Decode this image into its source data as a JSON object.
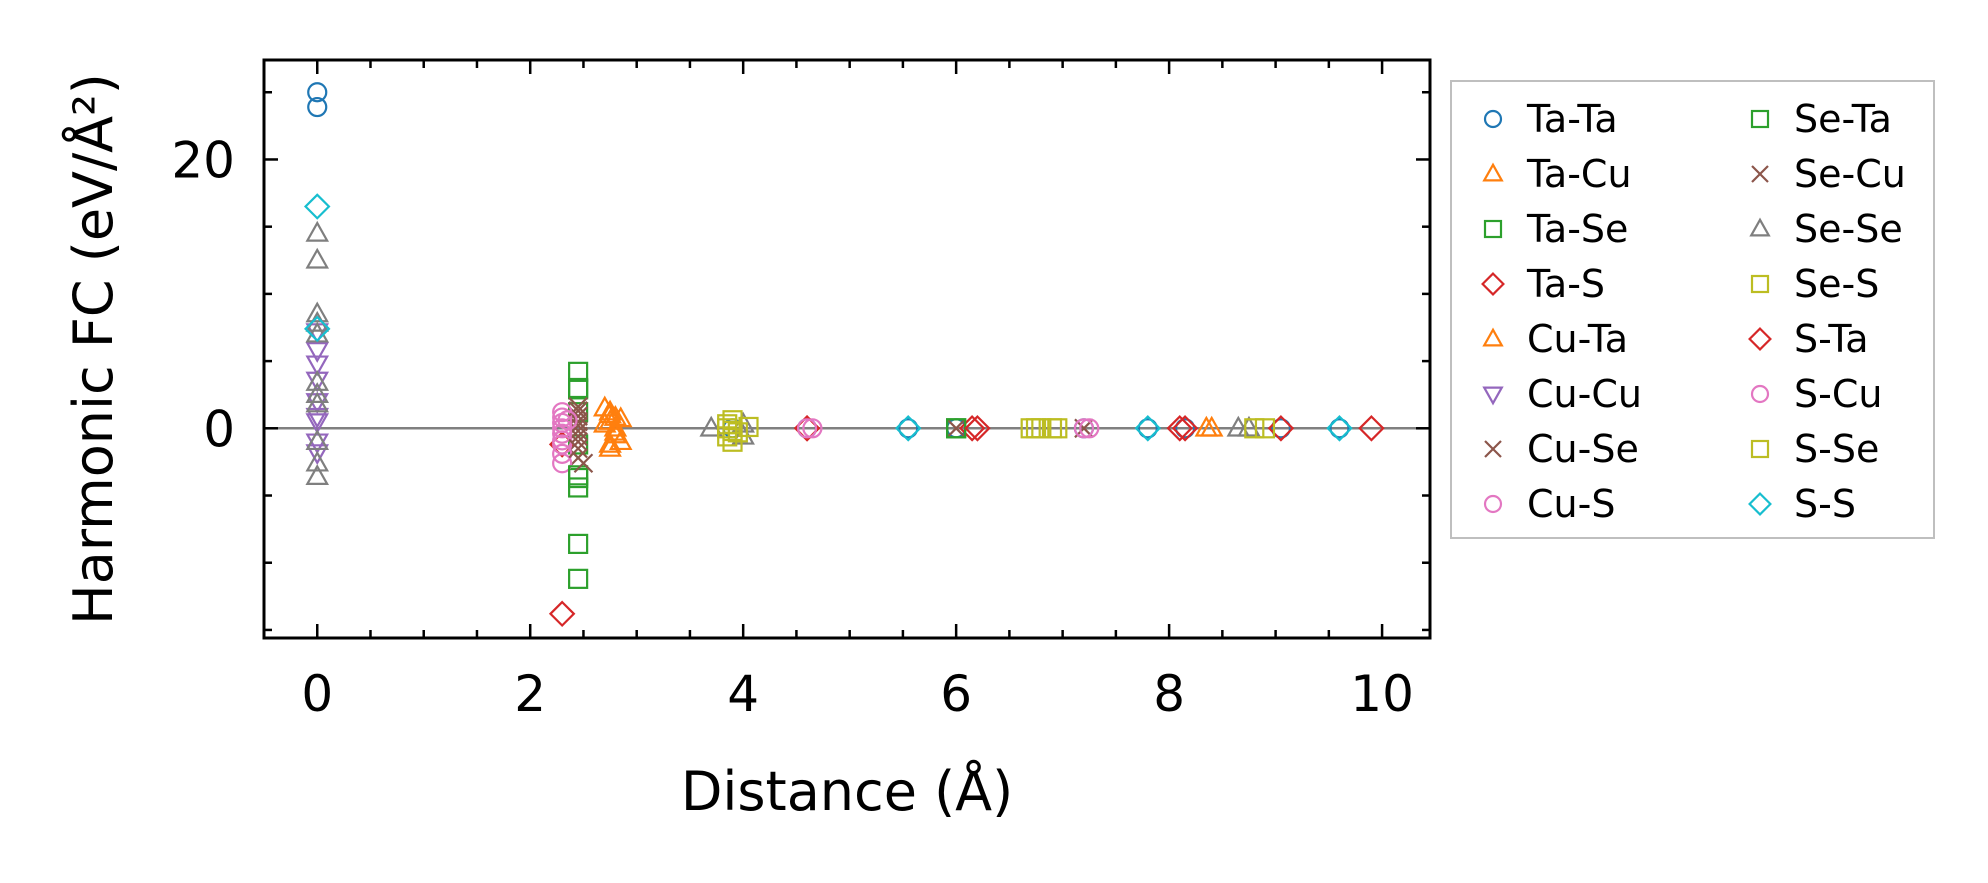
{
  "chart_data": {
    "type": "scatter",
    "title": "",
    "xlabel": "Distance (Å)",
    "ylabel": "Harmonic FC (eV/Å²)",
    "xlim": [
      -0.5,
      10.45
    ],
    "ylim": [
      -15.6,
      27.4
    ],
    "xticks": [
      0,
      2,
      4,
      6,
      8,
      10
    ],
    "yticks": [
      0,
      20
    ],
    "legend_position": "outside-right",
    "series": [
      {
        "name": "Ta-Ta",
        "color": "#1f77b4",
        "marker": "circle",
        "x": [
          0,
          0,
          3.9,
          4.6,
          5.55,
          6.0,
          7.2,
          7.8,
          8.15,
          9.05,
          9.6
        ],
        "y": [
          25.0,
          23.9,
          0,
          0,
          0,
          0,
          0,
          0,
          0,
          0,
          0
        ]
      },
      {
        "name": "Ta-Cu",
        "color": "#ff7f0e",
        "marker": "triangle-up",
        "x": [
          2.7,
          2.75,
          2.75,
          2.8,
          2.8,
          2.85,
          2.75,
          2.8,
          8.35
        ],
        "y": [
          1.5,
          1.0,
          0.5,
          0.0,
          -0.5,
          -1.0,
          -1.5,
          0.8,
          0
        ]
      },
      {
        "name": "Ta-Se",
        "color": "#2ca02c",
        "marker": "square",
        "x": [
          2.45,
          2.45,
          2.45,
          2.45,
          2.45,
          2.45,
          2.45,
          2.45,
          6.0
        ],
        "y": [
          4.2,
          2.9,
          1.2,
          -1.2,
          -3.7,
          -4.4,
          -8.6,
          -11.2,
          0
        ]
      },
      {
        "name": "Ta-S",
        "color": "#d62728",
        "marker": "diamond",
        "x": [
          2.3,
          2.3,
          4.6,
          6.15,
          8.1,
          9.05
        ],
        "y": [
          -13.8,
          -1.2,
          0,
          0,
          0,
          0
        ]
      },
      {
        "name": "Cu-Ta",
        "color": "#ff7f0e",
        "marker": "triangle-up",
        "x": [
          2.7,
          2.75,
          2.8,
          2.85,
          2.75,
          8.4
        ],
        "y": [
          0.3,
          1.2,
          -0.3,
          0.7,
          -1.2,
          0
        ]
      },
      {
        "name": "Cu-Cu",
        "color": "#9467bd",
        "marker": "triangle-down",
        "x": [
          0,
          0,
          0,
          0,
          0,
          0,
          0,
          0,
          0
        ],
        "y": [
          7.2,
          5.8,
          4.8,
          3.6,
          2.0,
          0.9,
          0.5,
          -1.0,
          -1.8
        ]
      },
      {
        "name": "Cu-Se",
        "color": "#8c564b",
        "marker": "x",
        "x": [
          2.45,
          2.45,
          2.45,
          2.45,
          2.45,
          2.45,
          2.45,
          2.45,
          6.0,
          7.2
        ],
        "y": [
          1.3,
          0.9,
          0.5,
          0.2,
          -0.2,
          -0.6,
          -1.0,
          -2.2,
          0,
          0
        ]
      },
      {
        "name": "Cu-S",
        "color": "#e377c2",
        "marker": "circle",
        "x": [
          2.3,
          2.3,
          2.3,
          2.3,
          2.3,
          2.3,
          2.3,
          2.3,
          2.3,
          4.65,
          7.25
        ],
        "y": [
          1.2,
          0.8,
          0.4,
          0.0,
          -0.4,
          -0.9,
          -1.2,
          -1.9,
          -2.6,
          0,
          0
        ]
      },
      {
        "name": "Se-Ta",
        "color": "#2ca02c",
        "marker": "square",
        "x": [
          2.45,
          2.45,
          6.0
        ],
        "y": [
          -3.5,
          3.0,
          0
        ]
      },
      {
        "name": "Se-Cu",
        "color": "#8c564b",
        "marker": "x",
        "x": [
          2.45,
          2.5,
          2.45
        ],
        "y": [
          1.6,
          -2.6,
          -1.5
        ]
      },
      {
        "name": "Se-Se",
        "color": "#7f7f7f",
        "marker": "triangle-up",
        "x": [
          0,
          0,
          0,
          0,
          0,
          0,
          0,
          0,
          0,
          0,
          0,
          3.7,
          4.0,
          4.0,
          8.65,
          8.75
        ],
        "y": [
          14.5,
          12.5,
          8.5,
          7.8,
          7.0,
          3.4,
          2.5,
          1.8,
          -1.0,
          -2.6,
          -3.6,
          0,
          0.3,
          -0.6,
          0,
          0
        ]
      },
      {
        "name": "Se-S",
        "color": "#bcbd22",
        "marker": "square",
        "x": [
          3.85,
          3.9,
          3.95,
          3.85,
          3.9,
          4.05,
          6.7,
          6.8,
          6.9
        ],
        "y": [
          0.3,
          0.6,
          -0.3,
          -0.6,
          -1.0,
          0.1,
          0,
          0,
          0
        ]
      },
      {
        "name": "S-Ta",
        "color": "#d62728",
        "marker": "diamond",
        "x": [
          4.6,
          6.2,
          8.15,
          9.9
        ],
        "y": [
          0,
          0,
          0,
          0
        ]
      },
      {
        "name": "S-Cu",
        "color": "#e377c2",
        "marker": "circle",
        "x": [
          2.35,
          4.6,
          7.2
        ],
        "y": [
          0.6,
          0,
          0
        ]
      },
      {
        "name": "S-Se",
        "color": "#bcbd22",
        "marker": "square",
        "x": [
          3.85,
          3.9,
          6.75,
          6.95,
          8.8,
          8.9
        ],
        "y": [
          0.0,
          -0.2,
          0,
          0,
          0,
          0
        ]
      },
      {
        "name": "S-S",
        "color": "#17becf",
        "marker": "diamond",
        "x": [
          0,
          0,
          5.55,
          7.8,
          9.6
        ],
        "y": [
          16.5,
          7.4,
          0,
          0,
          0
        ]
      }
    ]
  }
}
